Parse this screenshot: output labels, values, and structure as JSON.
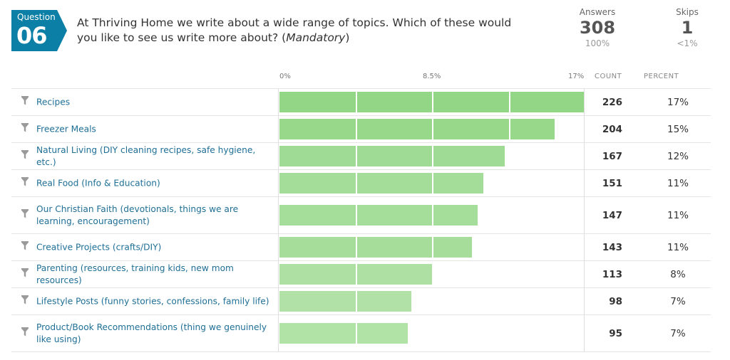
{
  "question": {
    "word": "Question",
    "number": "06",
    "title_main": "At Thriving Home we write about a wide range of topics. Which of these would you like to see us write more about? (",
    "title_mandatory": "Mandatory",
    "title_end": ")"
  },
  "stats": {
    "answers_label": "Answers",
    "answers_value": "308",
    "answers_pct": "100%",
    "skips_label": "Skips",
    "skips_value": "1",
    "skips_pct": "<1%"
  },
  "columns": {
    "count": "COUNT",
    "percent": "PERCENT"
  },
  "colors": {
    "accent": "#0b7fa6",
    "bar_light": "#c3e8b9",
    "bar_dark": "#8fd283",
    "link": "#1f6f96"
  },
  "chart_data": {
    "type": "bar",
    "orientation": "horizontal",
    "x_ticks": [
      "0%",
      "8.5%",
      "17%"
    ],
    "xlim": [
      0,
      17
    ],
    "grid": true,
    "categories": [
      "Recipes",
      "Freezer Meals",
      "Natural Living (DIY cleaning recipes, safe hygiene, etc.)",
      "Real Food (Info & Education)",
      "Our Christian Faith (devotionals, things we are learning, encouragement)",
      "Creative Projects (crafts/DIY)",
      "Parenting (resources, training kids, new mom resources)",
      "Lifestyle Posts (funny stories, confessions, family life)",
      "Product/Book Recommendations (thing we genuinely like using)"
    ],
    "counts": [
      226,
      204,
      167,
      151,
      147,
      143,
      113,
      98,
      95
    ],
    "percent_labels": [
      "17%",
      "15%",
      "12%",
      "11%",
      "11%",
      "11%",
      "8%",
      "7%",
      "7%"
    ],
    "values": [
      16.89,
      15.25,
      12.48,
      11.29,
      10.99,
      10.69,
      8.45,
      7.32,
      7.1
    ],
    "max_count": 226
  }
}
